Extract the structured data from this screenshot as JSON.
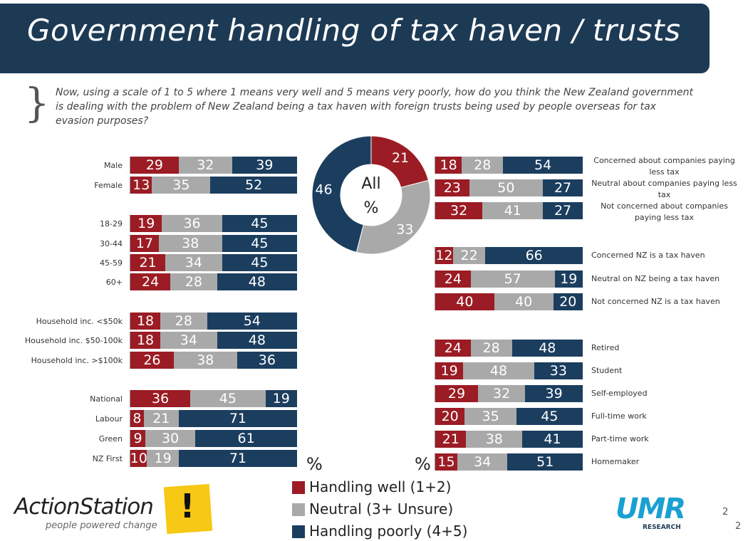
{
  "title": "Government handling of tax haven / trusts",
  "question": "Now, using a scale of 1 to 5 where 1 means very well and 5 means very poorly, how do you think the New Zealand government is dealing with the problem of New Zealand being a tax haven with foreign trusts being used by people overseas for tax evasion purposes?",
  "colors": {
    "handling_well": "#9b1c24",
    "neutral": "#a9a9a9",
    "handling_poorly": "#1b3e5f"
  },
  "legend": {
    "well": "Handling well (1+2)",
    "neutral": "Neutral (3+ Unsure)",
    "poorly": "Handling poorly (4+5)"
  },
  "pct_symbol": "%",
  "chart_data": {
    "type": "bar",
    "orientation": "horizontal-stacked-100",
    "series_names": [
      "Handling well (1+2)",
      "Neutral (3+ Unsure)",
      "Handling poorly (4+5)"
    ],
    "donut": {
      "center_label_1": "All",
      "center_label_2": "%",
      "values": [
        21,
        33,
        46
      ]
    },
    "left": [
      {
        "label": "Male",
        "values": [
          29,
          32,
          39
        ]
      },
      {
        "label": "Female",
        "values": [
          13,
          35,
          52
        ]
      },
      {
        "label": "18-29",
        "values": [
          19,
          36,
          45
        ]
      },
      {
        "label": "30-44",
        "values": [
          17,
          38,
          45
        ]
      },
      {
        "label": "45-59",
        "values": [
          21,
          34,
          45
        ]
      },
      {
        "label": "60+",
        "values": [
          24,
          28,
          48
        ]
      },
      {
        "label": "Household inc. <$50k",
        "values": [
          18,
          28,
          54
        ]
      },
      {
        "label": "Household inc. $50-100k",
        "values": [
          18,
          34,
          48
        ]
      },
      {
        "label": "Household inc. >$100k",
        "values": [
          26,
          38,
          36
        ]
      },
      {
        "label": "National",
        "values": [
          36,
          45,
          19
        ]
      },
      {
        "label": "Labour",
        "values": [
          8,
          21,
          71
        ]
      },
      {
        "label": "Green",
        "values": [
          9,
          30,
          61
        ]
      },
      {
        "label": "NZ First",
        "values": [
          10,
          19,
          71
        ]
      }
    ],
    "right": [
      {
        "label": "Concerned about companies paying less tax",
        "values": [
          18,
          28,
          54
        ]
      },
      {
        "label": "Neutral about companies paying less tax",
        "values": [
          23,
          50,
          27
        ]
      },
      {
        "label": "Not concerned about companies paying less tax",
        "values": [
          32,
          41,
          27
        ]
      },
      {
        "label": "Concerned NZ is a tax haven",
        "values": [
          12,
          22,
          66
        ]
      },
      {
        "label": "Neutral on NZ being a tax haven",
        "values": [
          24,
          57,
          19
        ]
      },
      {
        "label": "Not concerned NZ is a tax haven",
        "values": [
          40,
          40,
          20
        ]
      },
      {
        "label": "Retired",
        "values": [
          24,
          28,
          48
        ]
      },
      {
        "label": "Student",
        "values": [
          19,
          48,
          33
        ]
      },
      {
        "label": "Self-employed",
        "values": [
          29,
          32,
          39
        ]
      },
      {
        "label": "Full-time work",
        "values": [
          20,
          35,
          45
        ]
      },
      {
        "label": "Part-time work",
        "values": [
          21,
          38,
          41
        ]
      },
      {
        "label": "Homemaker",
        "values": [
          15,
          34,
          51
        ]
      }
    ]
  },
  "logos": {
    "actionstation": "ActionStation",
    "actionstation_tagline": "people powered change",
    "actionstation_mark": "!",
    "umr": "UMR",
    "umr_sub": "RESEARCH"
  },
  "page_numbers": [
    "2",
    "2"
  ]
}
